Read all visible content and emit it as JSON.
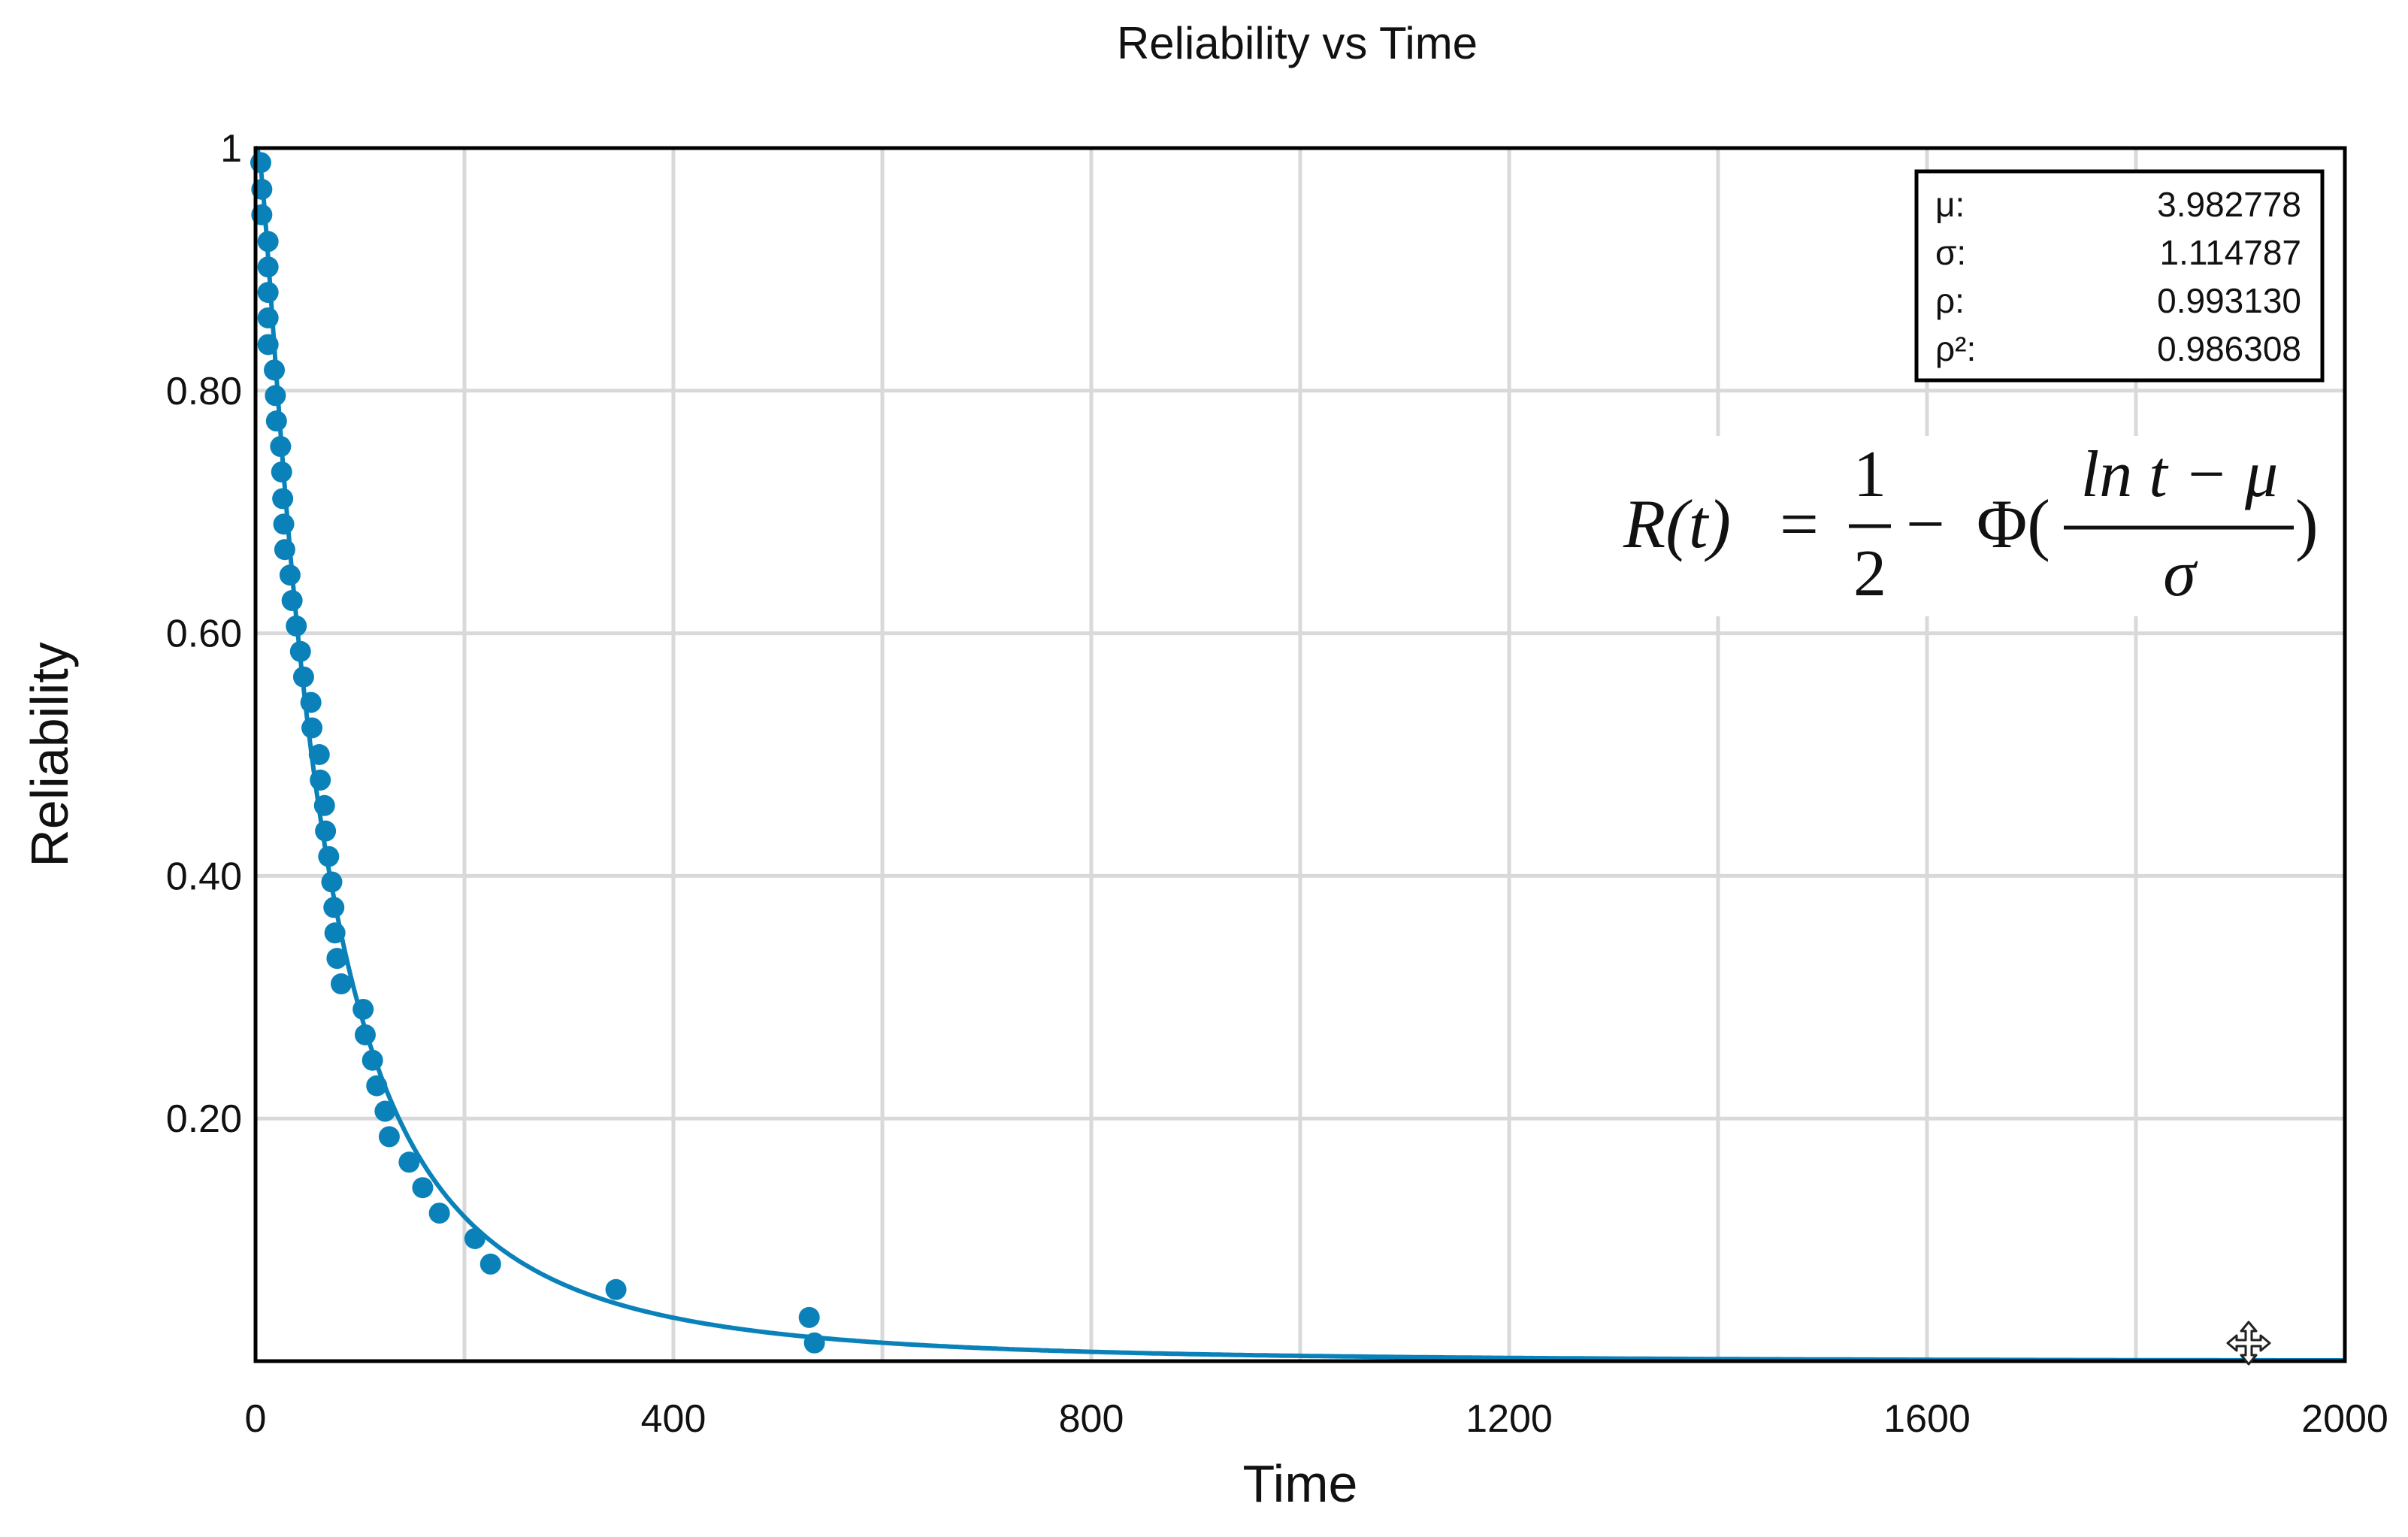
{
  "chart_data": {
    "type": "scatter",
    "title": "Reliability vs Time",
    "xlabel": "Time",
    "ylabel": "Reliability",
    "xlim": [
      0,
      2000
    ],
    "ylim": [
      0,
      1
    ],
    "xticks": [
      0,
      400,
      800,
      1200,
      1600,
      2000
    ],
    "xtick_labels": [
      "0",
      "400",
      "800",
      "1200",
      "1600",
      "2000"
    ],
    "yticks": [
      0.2,
      0.4,
      0.6,
      0.8,
      1.0
    ],
    "ytick_labels": [
      "0.20",
      "0.40",
      "0.60",
      "0.80",
      "1"
    ],
    "grid": true,
    "series": [
      {
        "kind": "points",
        "color": "#0a82b9",
        "points": [
          [
            5,
            0.988
          ],
          [
            6,
            0.966
          ],
          [
            6,
            0.945
          ],
          [
            12,
            0.923
          ],
          [
            12,
            0.902
          ],
          [
            12,
            0.881
          ],
          [
            12,
            0.86
          ],
          [
            12,
            0.838
          ],
          [
            18,
            0.817
          ],
          [
            19,
            0.796
          ],
          [
            20,
            0.775
          ],
          [
            24,
            0.754
          ],
          [
            25,
            0.733
          ],
          [
            26,
            0.711
          ],
          [
            27,
            0.69
          ],
          [
            28,
            0.669
          ],
          [
            33,
            0.648
          ],
          [
            35,
            0.627
          ],
          [
            39,
            0.606
          ],
          [
            43,
            0.585
          ],
          [
            46,
            0.564
          ],
          [
            53,
            0.543
          ],
          [
            54,
            0.522
          ],
          [
            61,
            0.5
          ],
          [
            62,
            0.479
          ],
          [
            66,
            0.458
          ],
          [
            67,
            0.437
          ],
          [
            70,
            0.416
          ],
          [
            73,
            0.395
          ],
          [
            75,
            0.374
          ],
          [
            76,
            0.353
          ],
          [
            78,
            0.332
          ],
          [
            82,
            0.311
          ],
          [
            103,
            0.29
          ],
          [
            105,
            0.269
          ],
          [
            112,
            0.248
          ],
          [
            116,
            0.227
          ],
          [
            124,
            0.206
          ],
          [
            128,
            0.185
          ],
          [
            147,
            0.164
          ],
          [
            160,
            0.143
          ],
          [
            176,
            0.122
          ],
          [
            210,
            0.101
          ],
          [
            225,
            0.08
          ],
          [
            345,
            0.059
          ],
          [
            530,
            0.036
          ],
          [
            535,
            0.015
          ]
        ]
      },
      {
        "kind": "fit-curve",
        "color": "#0a82b9",
        "model": "lognormal",
        "mu": 3.982778,
        "sigma": 1.114787
      }
    ],
    "stats_box": {
      "placement": "top-right",
      "rows": [
        {
          "label": "μ:",
          "value": "3.982778"
        },
        {
          "label": "σ:",
          "value": "1.114787"
        },
        {
          "label": "ρ:",
          "value": "0.993130"
        },
        {
          "label": "ρ²:",
          "value": "0.986308"
        }
      ]
    },
    "formula": {
      "lhs": "R(t)",
      "eq": "=",
      "half_num": "1",
      "half_den": "2",
      "minus": "−",
      "phi": "Φ(",
      "frac_num": "ln t − μ",
      "frac_den": "σ",
      "close": ")"
    },
    "cursor_icon": "move-cursor-icon"
  }
}
